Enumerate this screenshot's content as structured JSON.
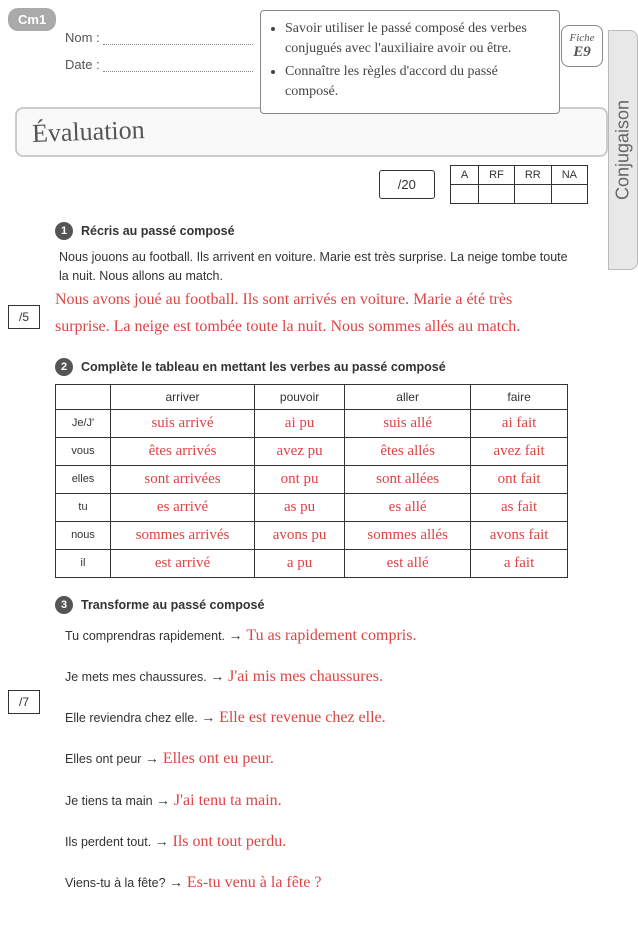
{
  "level": "Cm1",
  "side_tab": "Conjugaison",
  "fiche": {
    "label": "Fiche",
    "num": "E9"
  },
  "fields": {
    "nom": "Nom :",
    "date": "Date :"
  },
  "objectives": [
    "Savoir utiliser le passé composé des verbes conjugués avec l'auxiliaire avoir ou être.",
    "Connaître les règles d'accord du passé composé."
  ],
  "eval_title": "Évaluation",
  "score": "/20",
  "grades": [
    "A",
    "RF",
    "RR",
    "NA"
  ],
  "ex1": {
    "num": "1",
    "title": "Récris au passé composé",
    "points": "/5",
    "prompt": "Nous jouons au football. Ils arrivent en voiture. Marie est très surprise. La neige tombe toute la nuit. Nous allons au match.",
    "answer": "Nous avons joué au football. Ils sont arrivés en voiture. Marie a été très surprise. La neige est tombée toute la nuit. Nous sommes allés au match."
  },
  "ex2": {
    "num": "2",
    "title": "Complète le tableau en mettant les verbes au passé composé",
    "headers": [
      "",
      "arriver",
      "pouvoir",
      "aller",
      "faire"
    ],
    "rows": [
      {
        "h": "Je/J'",
        "c": [
          "suis arrivé",
          "ai pu",
          "suis allé",
          "ai fait"
        ]
      },
      {
        "h": "vous",
        "c": [
          "êtes arrivés",
          "avez pu",
          "êtes  allés",
          "avez fait"
        ]
      },
      {
        "h": "elles",
        "c": [
          "sont arrivées",
          "ont pu",
          "sont  allées",
          "ont fait"
        ]
      },
      {
        "h": "tu",
        "c": [
          "es arrivé",
          "as pu",
          "es  allé",
          "as fait"
        ]
      },
      {
        "h": "nous",
        "c": [
          "sommes arrivés",
          "avons pu",
          "sommes  allés",
          "avons fait"
        ]
      },
      {
        "h": "il",
        "c": [
          "est arrivé",
          "a pu",
          "est  allé",
          "a fait"
        ]
      }
    ]
  },
  "ex3": {
    "num": "3",
    "title": "Transforme au passé composé",
    "points": "/7",
    "items": [
      {
        "p": "Tu  comprendras rapidement.",
        "a": "Tu as rapidement compris."
      },
      {
        "p": "Je mets mes chaussures.",
        "a": "J'ai mis mes chaussures."
      },
      {
        "p": "Elle reviendra chez elle.",
        "a": "Elle est revenue chez elle."
      },
      {
        "p": "Elles ont peur",
        "a": "Elles ont eu peur."
      },
      {
        "p": "Je tiens ta main",
        "a": "J'ai tenu ta main."
      },
      {
        "p": "Ils perdent tout.",
        "a": "Ils ont tout perdu."
      },
      {
        "p": "Viens-tu à la fête?",
        "a": "Es-tu venu à la fête ?"
      }
    ]
  }
}
